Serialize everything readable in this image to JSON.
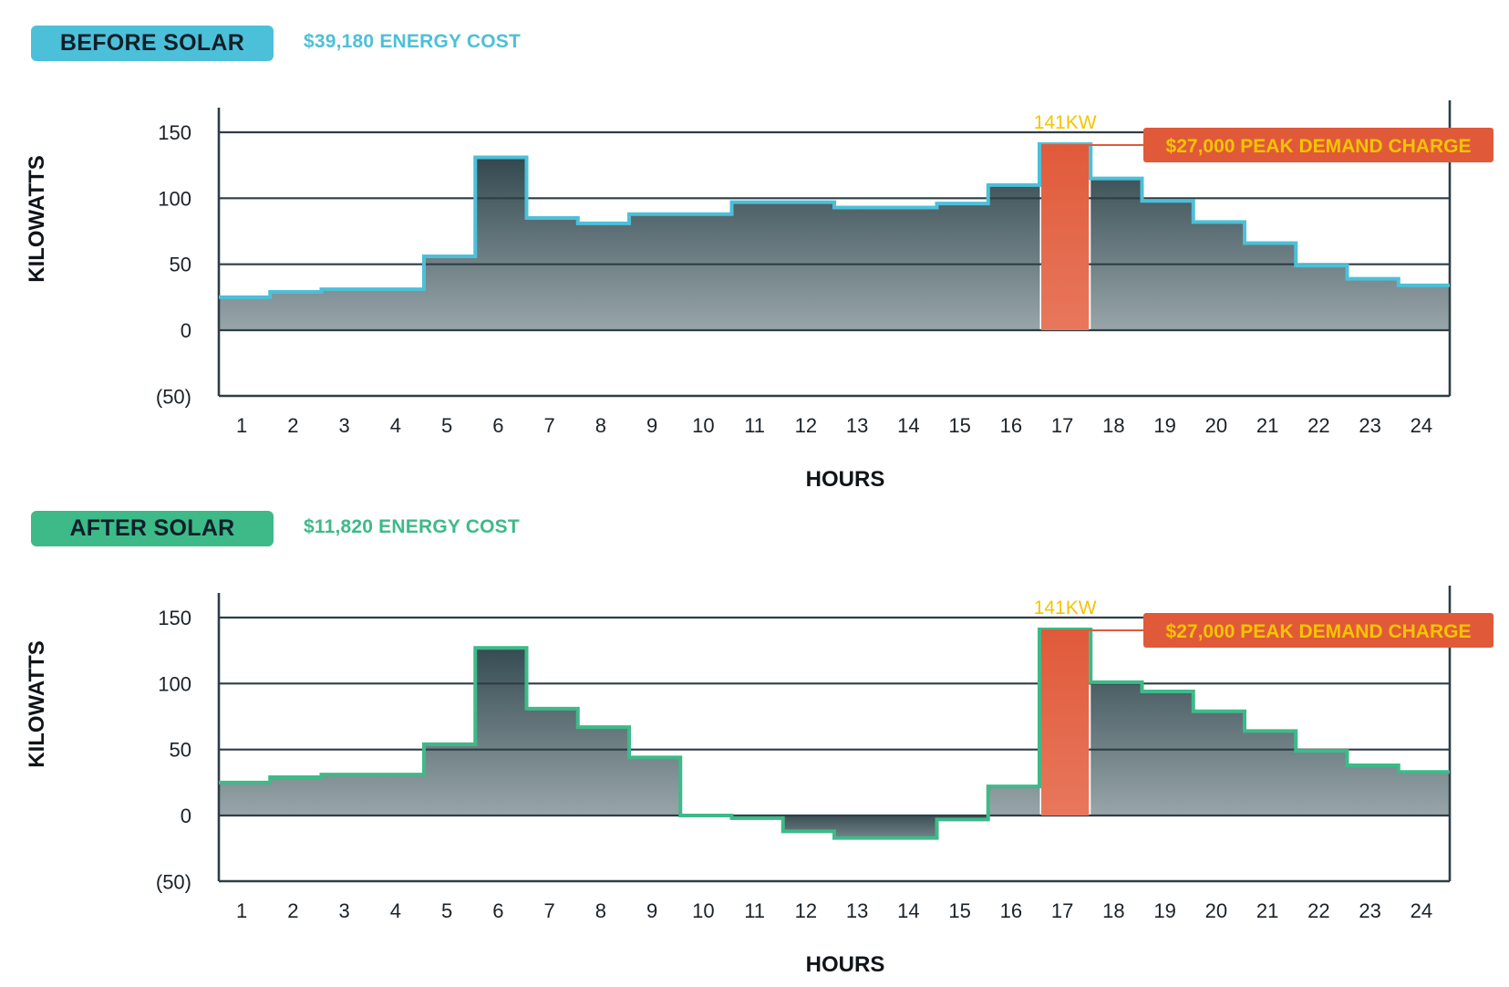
{
  "colors": {
    "before_accent": "#4cc0d8",
    "after_accent": "#3dba88",
    "peak_bar": "#e05a3a",
    "peak_label_text": "#f5c400",
    "axis": "#2d3e45",
    "fill_top": "#213840",
    "fill_bottom": "#98a6a9"
  },
  "chart_data": [
    {
      "type": "area",
      "badge": "BEFORE SOLAR",
      "cost_label": "$39,180 ENERGY COST",
      "xlabel": "HOURS",
      "ylabel": "KILOWATTS",
      "y_ticks": [
        "150",
        "100",
        "50",
        "0",
        "(50)"
      ],
      "y_tick_values": [
        150,
        100,
        50,
        0,
        -50
      ],
      "ylim": [
        -50,
        160
      ],
      "categories": [
        "1",
        "2",
        "3",
        "4",
        "5",
        "6",
        "7",
        "8",
        "9",
        "10",
        "11",
        "12",
        "13",
        "14",
        "15",
        "16",
        "17",
        "18",
        "19",
        "20",
        "21",
        "22",
        "23",
        "24"
      ],
      "series": [
        {
          "name": "Kilowatts",
          "values": [
            25,
            29,
            31,
            31,
            56,
            131,
            85,
            81,
            88,
            88,
            97,
            97,
            93,
            93,
            96,
            110,
            141,
            115,
            98,
            82,
            66,
            49,
            39,
            34
          ]
        }
      ],
      "peak": {
        "hour": "17",
        "value": 141,
        "value_label": "141KW",
        "charge_label": "$27,000 PEAK DEMAND CHARGE"
      }
    },
    {
      "type": "area",
      "badge": "AFTER SOLAR",
      "cost_label": "$11,820 ENERGY COST",
      "xlabel": "HOURS",
      "ylabel": "KILOWATTS",
      "y_ticks": [
        "150",
        "100",
        "50",
        "0",
        "(50)"
      ],
      "y_tick_values": [
        150,
        100,
        50,
        0,
        -50
      ],
      "ylim": [
        -50,
        160
      ],
      "categories": [
        "1",
        "2",
        "3",
        "4",
        "5",
        "6",
        "7",
        "8",
        "9",
        "10",
        "11",
        "12",
        "13",
        "14",
        "15",
        "16",
        "17",
        "18",
        "19",
        "20",
        "21",
        "22",
        "23",
        "24"
      ],
      "series": [
        {
          "name": "Kilowatts",
          "values": [
            25,
            29,
            31,
            31,
            54,
            127,
            81,
            67,
            44,
            0,
            -2,
            -12,
            -17,
            -17,
            -3,
            22,
            141,
            101,
            94,
            79,
            64,
            49,
            38,
            33
          ]
        }
      ],
      "peak": {
        "hour": "17",
        "value": 141,
        "value_label": "141KW",
        "charge_label": "$27,000 PEAK DEMAND CHARGE"
      }
    }
  ]
}
